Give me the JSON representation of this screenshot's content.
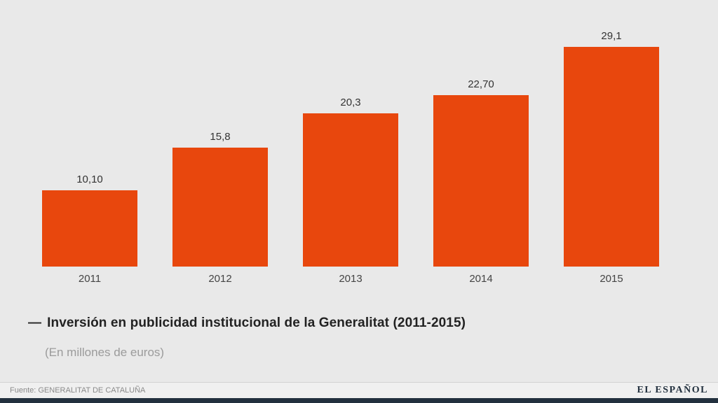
{
  "chart_data": {
    "type": "bar",
    "categories": [
      "2011",
      "2012",
      "2013",
      "2014",
      "2015"
    ],
    "values": [
      10.1,
      15.8,
      20.3,
      22.7,
      29.1
    ],
    "value_labels": [
      "10,10",
      "15,8",
      "20,3",
      "22,70",
      "29,1"
    ],
    "legend_marker": "—",
    "title": "Inversión en publicidad institucional de la Generalitat (2011-2015)",
    "subtitle": "(En millones de euros)",
    "xlabel": "",
    "ylabel": "",
    "ylim": [
      0,
      30
    ],
    "grid": false,
    "legend_position": "below",
    "bar_color": "#e8470d"
  },
  "footer": {
    "source": "Fuente: GENERALITAT DE CATALUÑA",
    "brand": "EL ESPAÑOL"
  },
  "colors": {
    "background": "#e9e9e9",
    "bar": "#e8470d",
    "text": "#333333",
    "subtitle": "#9b9b9b",
    "brand_navy": "#22303e"
  }
}
